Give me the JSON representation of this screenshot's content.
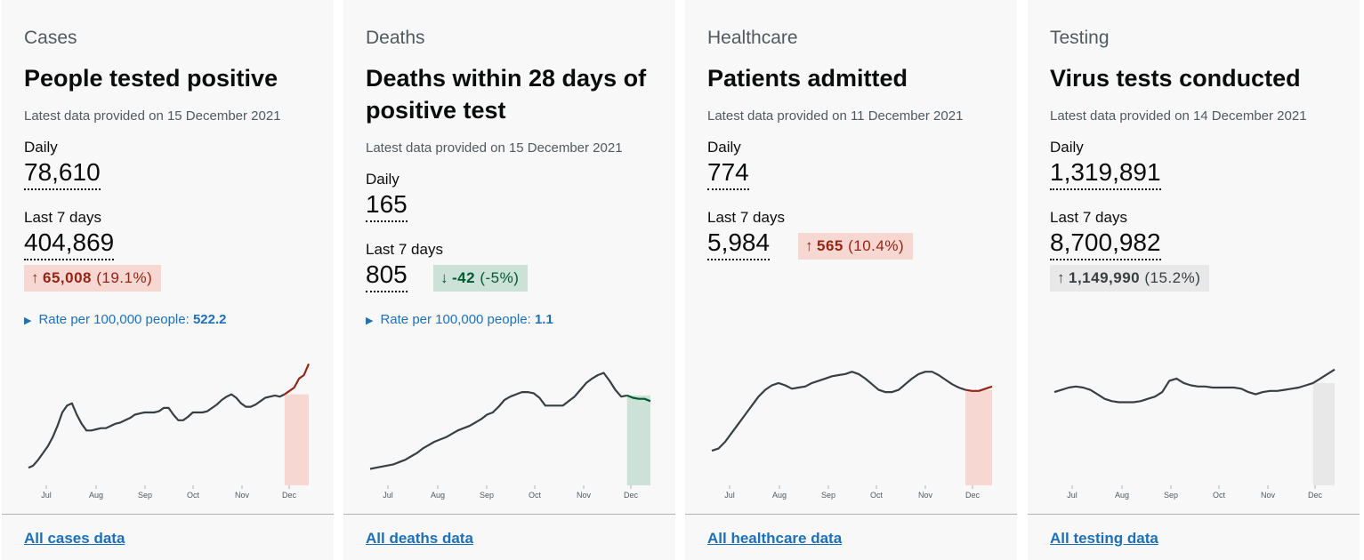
{
  "cards": [
    {
      "category": "Cases",
      "heading": "People tested positive",
      "latest": "Latest data provided on 15 December 2021",
      "daily_label": "Daily",
      "daily_value": "78,610",
      "week_label": "Last 7 days",
      "week_value": "404,869",
      "change": {
        "direction": "up",
        "arrow": "↑",
        "amount": "65,008",
        "percent": "(19.1%)"
      },
      "rate_label": "Rate per 100,000 people:",
      "rate_value": "522.2",
      "link": "All cases data",
      "chart_data": {
        "type": "line",
        "x_ticks": [
          "Jul",
          "Aug",
          "Sep",
          "Oct",
          "Nov",
          "Dec"
        ],
        "values": [
          3,
          5,
          10,
          16,
          22,
          30,
          40,
          52,
          58,
          60,
          50,
          42,
          36,
          36,
          37,
          38,
          38,
          40,
          42,
          43,
          45,
          47,
          50,
          51,
          52,
          52,
          52,
          53,
          56,
          56,
          50,
          45,
          45,
          48,
          52,
          52,
          52,
          53,
          56,
          59,
          63,
          66,
          68,
          65,
          60,
          57,
          57,
          59,
          62,
          65,
          66,
          67,
          66,
          68,
          71,
          74,
          82,
          85,
          95
        ],
        "highlight": {
          "from_index": 53,
          "color": "#f6d7d2",
          "line_color": "#942514"
        },
        "line_color": "#383f43"
      }
    },
    {
      "category": "Deaths",
      "heading": "Deaths within 28 days of positive test",
      "latest": "Latest data provided on 15 December 2021",
      "daily_label": "Daily",
      "daily_value": "165",
      "week_label": "Last 7 days",
      "week_value": "805",
      "change": {
        "direction": "down",
        "arrow": "↓",
        "amount": "-42",
        "percent": "(-5%)"
      },
      "rate_label": "Rate per 100,000 people:",
      "rate_value": "1.1",
      "link": "All deaths data",
      "chart_data": {
        "type": "line",
        "x_ticks": [
          "Jul",
          "Aug",
          "Sep",
          "Oct",
          "Nov",
          "Dec"
        ],
        "values": [
          2,
          3,
          4,
          5,
          6,
          8,
          10,
          13,
          16,
          20,
          23,
          26,
          28,
          30,
          33,
          36,
          38,
          40,
          43,
          46,
          50,
          52,
          57,
          63,
          66,
          68,
          70,
          70,
          69,
          65,
          58,
          58,
          58,
          58,
          62,
          66,
          72,
          78,
          82,
          85,
          87,
          80,
          72,
          66,
          67,
          65,
          64,
          64,
          62
        ],
        "highlight": {
          "from_index": 44,
          "color": "#cce2d8",
          "line_color": "#005a30"
        },
        "line_color": "#383f43"
      }
    },
    {
      "category": "Healthcare",
      "heading": "Patients admitted",
      "latest": "Latest data provided on 11 December 2021",
      "daily_label": "Daily",
      "daily_value": "774",
      "week_label": "Last 7 days",
      "week_value": "5,984",
      "change": {
        "direction": "up",
        "arrow": "↑",
        "amount": "565",
        "percent": "(10.4%)"
      },
      "rate_label": "",
      "rate_value": "",
      "link": "All healthcare data",
      "chart_data": {
        "type": "line",
        "x_ticks": [
          "Jul",
          "Aug",
          "Sep",
          "Oct",
          "Nov",
          "Dec"
        ],
        "values": [
          18,
          20,
          26,
          34,
          42,
          50,
          58,
          66,
          72,
          76,
          78,
          76,
          73,
          74,
          75,
          78,
          80,
          82,
          84,
          85,
          86,
          88,
          86,
          82,
          77,
          72,
          70,
          70,
          72,
          77,
          82,
          86,
          88,
          88,
          85,
          81,
          77,
          74,
          72,
          71,
          71,
          73,
          75
        ],
        "highlight": {
          "from_index": 38,
          "color": "#f6d7d2",
          "line_color": "#942514"
        },
        "line_color": "#383f43"
      }
    },
    {
      "category": "Testing",
      "heading": "Virus tests conducted",
      "latest": "Latest data provided on 14 December 2021",
      "daily_label": "Daily",
      "daily_value": "1,319,891",
      "week_label": "Last 7 days",
      "week_value": "8,700,982",
      "change": {
        "direction": "neutral",
        "arrow": "↑",
        "amount": "1,149,990",
        "percent": "(15.2%)"
      },
      "rate_label": "",
      "rate_value": "",
      "link": "All testing data",
      "chart_data": {
        "type": "line",
        "x_ticks": [
          "Jul",
          "Aug",
          "Sep",
          "Oct",
          "Nov",
          "Dec"
        ],
        "values": [
          70,
          72,
          74,
          75,
          74,
          72,
          68,
          64,
          62,
          61,
          61,
          61,
          62,
          64,
          66,
          70,
          80,
          82,
          78,
          76,
          75,
          75,
          74,
          74,
          74,
          74,
          73,
          70,
          68,
          70,
          71,
          71,
          72,
          73,
          74,
          76,
          78,
          82,
          86,
          90
        ],
        "highlight": {
          "from_index": 36,
          "color": "#e8e8e8",
          "line_color": "#383f43"
        },
        "line_color": "#383f43"
      }
    }
  ]
}
